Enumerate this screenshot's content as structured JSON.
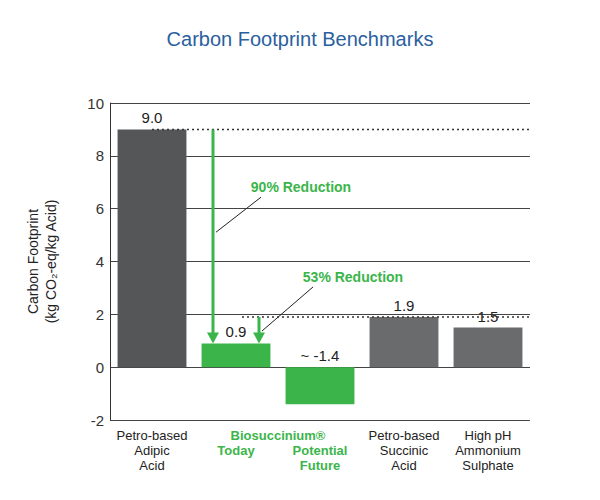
{
  "chart_data": {
    "type": "bar",
    "title": "Carbon Footprint Benchmarks",
    "y_label": "Carbon Footprint\n(kg CO₂-eq/kg Acid)",
    "categories": [
      "Petro-based\nAdipic\nAcid",
      "Today",
      "Potential\nFuture",
      "Petro-based\nSuccinic\nAcid",
      "High pH\nAmmonium\nSulphate"
    ],
    "category_group": {
      "label": "Biosuccinium®",
      "categories": [
        "Today",
        "Potential\nFuture"
      ]
    },
    "values": [
      9.0,
      0.9,
      -1.4,
      1.9,
      1.5
    ],
    "value_labels": [
      "9.0",
      "0.9",
      "~ -1.4",
      "1.9",
      "1.5"
    ],
    "colors": [
      "#555658",
      "#3bb54a",
      "#3bb54a",
      "#6a6b6d",
      "#6a6b6d"
    ],
    "data_labels": true,
    "ylim": [
      -2,
      10
    ],
    "yticks": [
      -2,
      0,
      2,
      4,
      6,
      8,
      10
    ],
    "grid": true,
    "annotations": [
      {
        "text": "90% Reduction",
        "from": "Petro-based\nAdipic\nAcid",
        "to": "Today"
      },
      {
        "text": "53% Reduction",
        "from": "Petro-based\nSuccinic\nAcid",
        "to": "Today"
      }
    ]
  }
}
